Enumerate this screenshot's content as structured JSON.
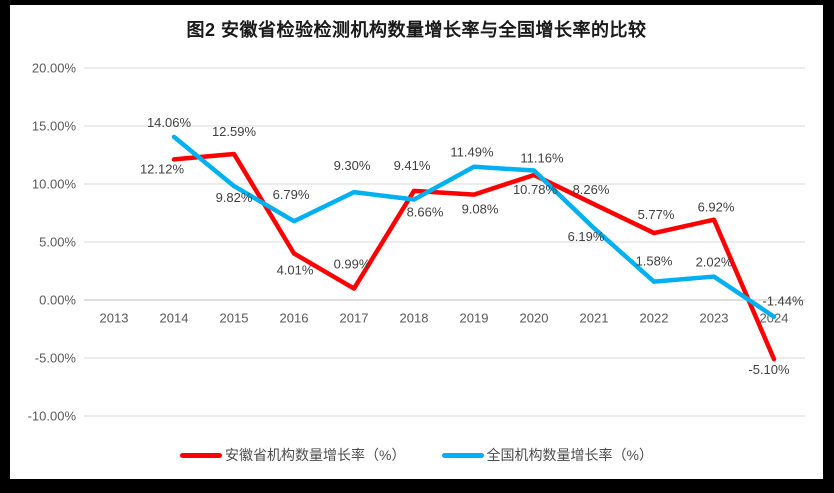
{
  "chart_data": {
    "type": "line",
    "title": "图2 安徽省检验检测机构数量增长率与全国增长率的比较",
    "categories": [
      "2013",
      "2014",
      "2015",
      "2016",
      "2017",
      "2018",
      "2019",
      "2020",
      "2021",
      "2022",
      "2023",
      "2024"
    ],
    "series": [
      {
        "name": "安徽省机构数量增长率（%）",
        "color": "#FF0000",
        "values": [
          null,
          12.12,
          12.59,
          4.01,
          0.99,
          9.41,
          9.08,
          10.78,
          8.26,
          5.77,
          6.92,
          -5.1
        ],
        "labels": [
          "",
          "12.12%",
          "12.59%",
          "4.01%",
          "0.99%",
          "9.41%",
          "9.08%",
          "10.78%",
          "8.26%",
          "5.77%",
          "6.92%",
          "-5.10%"
        ],
        "label_offsets": [
          [
            0,
            0
          ],
          [
            -12,
            14
          ],
          [
            0,
            -18
          ],
          [
            1,
            21
          ],
          [
            -2,
            -20
          ],
          [
            -2,
            -21
          ],
          [
            6,
            19
          ],
          [
            1,
            19
          ],
          [
            -3,
            -10
          ],
          [
            2,
            -14
          ],
          [
            2,
            -8
          ],
          [
            -5,
            15
          ]
        ]
      },
      {
        "name": "全国机构数量增长率（%）",
        "color": "#00B0F0",
        "values": [
          null,
          14.06,
          9.82,
          6.79,
          9.3,
          8.66,
          11.49,
          11.16,
          6.19,
          1.58,
          2.02,
          -1.44
        ],
        "labels": [
          "",
          "14.06%",
          "9.82%",
          "6.79%",
          "9.30%",
          "8.66%",
          "11.49%",
          "11.16%",
          "6.19%",
          "1.58%",
          "2.02%",
          "-1.44%"
        ],
        "label_offsets": [
          [
            0,
            0
          ],
          [
            -5,
            -10
          ],
          [
            0,
            16
          ],
          [
            -3,
            -22
          ],
          [
            -2,
            -22
          ],
          [
            11,
            17
          ],
          [
            -2,
            -10
          ],
          [
            8,
            -8
          ],
          [
            -8,
            13
          ],
          [
            0,
            -16
          ],
          [
            0,
            -10
          ],
          [
            9,
            -11
          ]
        ]
      }
    ],
    "y_axis": {
      "tick_labels": [
        "20.00%",
        "15.00%",
        "10.00%",
        "5.00%",
        "0.00%",
        "-5.00%",
        "-10.00%"
      ],
      "tick_values": [
        20,
        15,
        10,
        5,
        0,
        -5,
        -10
      ],
      "min": -10,
      "max": 20
    },
    "grid": true,
    "legend_position": "bottom"
  },
  "colors": {
    "page_background": "#000000",
    "chart_background": "#FFFFFF",
    "gridline": "#D9D9D9",
    "axis_line": "#BFBFBF",
    "axis_text": "#595959",
    "data_label_text": "#404040",
    "title_text": "#1A1A1A"
  }
}
